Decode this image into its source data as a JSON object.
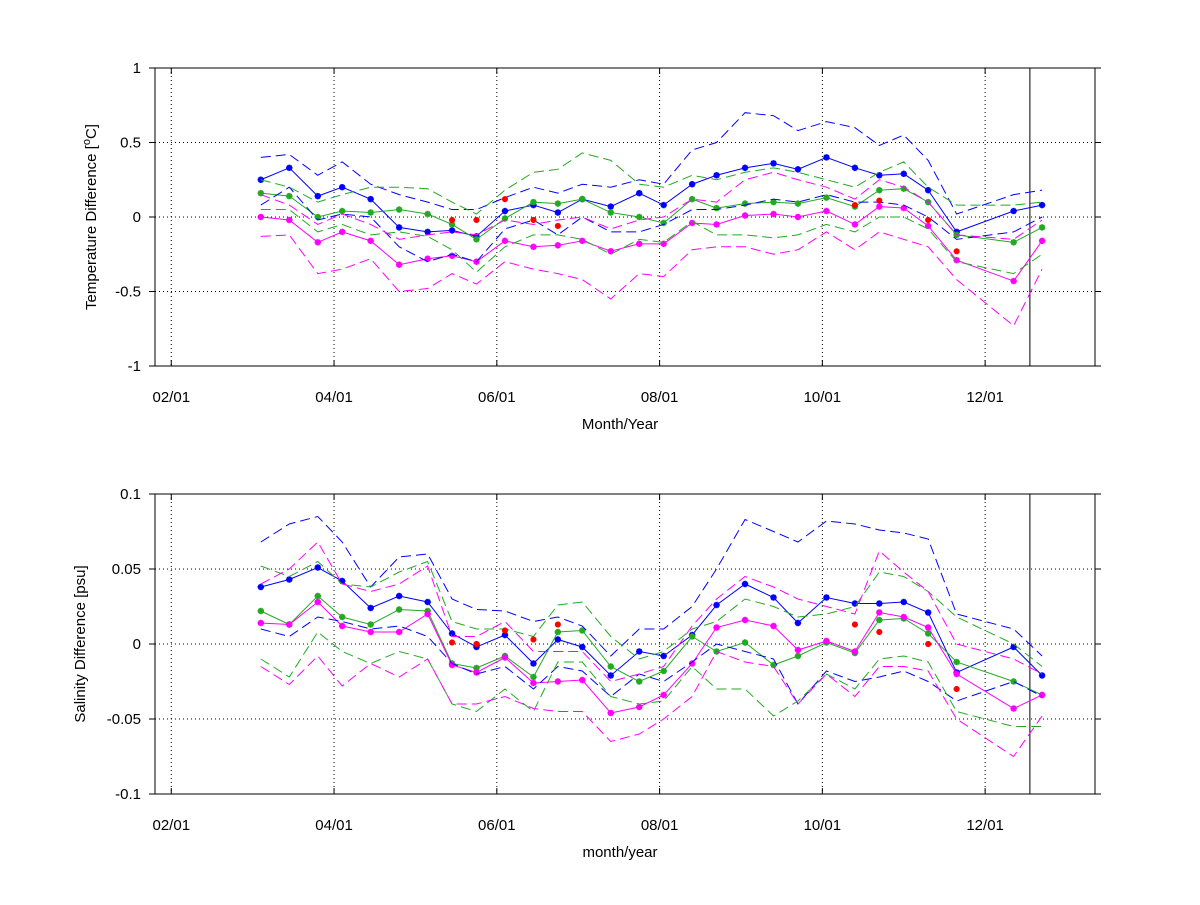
{
  "colors": {
    "blue": "#0000ff",
    "green": "#22aa22",
    "magenta": "#ff00ff",
    "red": "#ff0000"
  },
  "chart_data": [
    {
      "type": "line",
      "xlabel": "Month/Year",
      "ylabel_main": "Temperature Difference [",
      "ylabel_sup": "o",
      "ylabel_tail": "C]",
      "x_ticks": [
        "02/01",
        "04/01",
        "06/01",
        "08/01",
        "10/01",
        "12/01"
      ],
      "y_ticks": [
        "1",
        "0.5",
        "0",
        "-0.5",
        "-1"
      ],
      "ylim": [
        -1,
        1
      ],
      "x_range_months": [
        1.8,
        13.35
      ],
      "x_grid_months": [
        2,
        4,
        6,
        8,
        10,
        12
      ],
      "vline_month": 12.55,
      "grid": true,
      "x": [
        3.1,
        3.45,
        3.8,
        4.1,
        4.45,
        4.8,
        5.15,
        5.45,
        5.75,
        6.1,
        6.45,
        6.75,
        7.05,
        7.4,
        7.75,
        8.05,
        8.4,
        8.7,
        9.05,
        9.4,
        9.7,
        10.05,
        10.4,
        10.7,
        11.0,
        11.3,
        11.65,
        12.35,
        12.7
      ],
      "series": [
        {
          "color": "blue",
          "style": "solid",
          "marker": true,
          "values": [
            0.25,
            0.33,
            0.14,
            0.2,
            0.12,
            -0.07,
            -0.1,
            -0.09,
            -0.13,
            0.04,
            0.08,
            0.03,
            0.12,
            0.07,
            0.16,
            0.08,
            0.22,
            0.28,
            0.33,
            0.36,
            0.32,
            0.4,
            0.33,
            0.28,
            0.29,
            0.18,
            -0.1,
            0.04,
            0.08
          ]
        },
        {
          "color": "green",
          "style": "solid",
          "marker": true,
          "values": [
            0.16,
            0.14,
            0.0,
            0.04,
            0.03,
            0.05,
            0.02,
            -0.05,
            -0.15,
            -0.01,
            0.1,
            0.09,
            0.12,
            0.03,
            0.0,
            -0.04,
            0.12,
            0.06,
            0.09,
            0.1,
            0.09,
            0.13,
            0.07,
            0.18,
            0.19,
            0.1,
            -0.12,
            -0.17,
            -0.07
          ]
        },
        {
          "color": "magenta",
          "style": "solid",
          "marker": true,
          "values": [
            0.0,
            -0.02,
            -0.17,
            -0.1,
            -0.16,
            -0.32,
            -0.28,
            -0.26,
            -0.3,
            -0.16,
            -0.2,
            -0.19,
            -0.16,
            -0.23,
            -0.18,
            -0.18,
            -0.04,
            -0.05,
            0.01,
            0.02,
            0.0,
            0.04,
            -0.05,
            0.07,
            0.06,
            -0.06,
            -0.29,
            -0.43,
            -0.16
          ]
        },
        {
          "color": "blue",
          "style": "dashed",
          "marker": false,
          "values": [
            0.4,
            0.42,
            0.28,
            0.37,
            0.22,
            0.15,
            0.1,
            0.05,
            0.05,
            0.13,
            0.2,
            0.16,
            0.22,
            0.2,
            0.25,
            0.22,
            0.45,
            0.5,
            0.7,
            0.68,
            0.58,
            0.64,
            0.6,
            0.48,
            0.55,
            0.38,
            0.02,
            0.15,
            0.18
          ]
        },
        {
          "color": "blue",
          "style": "dashed",
          "marker": false,
          "values": [
            0.08,
            0.2,
            -0.02,
            0.02,
            0.0,
            -0.2,
            -0.3,
            -0.25,
            -0.3,
            -0.08,
            -0.02,
            -0.12,
            0.0,
            -0.1,
            -0.1,
            -0.05,
            0.05,
            0.05,
            0.08,
            0.12,
            0.1,
            0.15,
            0.1,
            0.1,
            0.08,
            0.0,
            -0.15,
            -0.1,
            0.0
          ]
        },
        {
          "color": "green",
          "style": "dashed",
          "marker": false,
          "values": [
            0.25,
            0.2,
            0.1,
            0.15,
            0.2,
            0.2,
            0.19,
            0.1,
            0.02,
            0.18,
            0.3,
            0.32,
            0.43,
            0.38,
            0.22,
            0.2,
            0.28,
            0.25,
            0.3,
            0.33,
            0.3,
            0.25,
            0.2,
            0.3,
            0.37,
            0.2,
            0.08,
            0.08,
            0.1
          ]
        },
        {
          "color": "green",
          "style": "dashed",
          "marker": false,
          "values": [
            0.05,
            0.05,
            -0.1,
            -0.05,
            -0.12,
            -0.1,
            -0.13,
            -0.22,
            -0.37,
            -0.2,
            -0.12,
            -0.12,
            -0.15,
            -0.25,
            -0.15,
            -0.17,
            -0.03,
            -0.12,
            -0.12,
            -0.14,
            -0.12,
            -0.05,
            -0.1,
            0.0,
            0.0,
            -0.08,
            -0.3,
            -0.38,
            -0.25
          ]
        },
        {
          "color": "magenta",
          "style": "dashed",
          "marker": false,
          "values": [
            0.15,
            0.08,
            -0.05,
            0.02,
            -0.05,
            -0.15,
            -0.12,
            -0.1,
            -0.12,
            -0.02,
            -0.05,
            -0.02,
            0.0,
            -0.08,
            -0.02,
            0.0,
            0.12,
            0.1,
            0.25,
            0.3,
            0.25,
            0.2,
            0.12,
            0.25,
            0.2,
            0.1,
            -0.12,
            -0.15,
            -0.02
          ]
        },
        {
          "color": "magenta",
          "style": "dashed",
          "marker": false,
          "values": [
            -0.13,
            -0.12,
            -0.38,
            -0.35,
            -0.28,
            -0.5,
            -0.48,
            -0.38,
            -0.45,
            -0.3,
            -0.35,
            -0.38,
            -0.42,
            -0.55,
            -0.38,
            -0.4,
            -0.22,
            -0.2,
            -0.2,
            -0.25,
            -0.22,
            -0.1,
            -0.22,
            -0.1,
            -0.15,
            -0.2,
            -0.42,
            -0.73,
            -0.35
          ]
        }
      ],
      "red_points": {
        "x": [
          5.45,
          5.75,
          6.1,
          6.45,
          6.75,
          10.4,
          10.7,
          11.3,
          11.65
        ],
        "values": [
          -0.02,
          -0.02,
          0.12,
          -0.02,
          -0.06,
          0.08,
          0.11,
          -0.02,
          -0.23
        ]
      }
    },
    {
      "type": "line",
      "xlabel": "month/year",
      "ylabel_main": "Salinity Difference [psu]",
      "x_ticks": [
        "02/01",
        "04/01",
        "06/01",
        "08/01",
        "10/01",
        "12/01"
      ],
      "y_ticks": [
        "0.1",
        "0.05",
        "0",
        "-0.05",
        "-0.1"
      ],
      "ylim": [
        -0.1,
        0.1
      ],
      "x_range_months": [
        1.8,
        13.35
      ],
      "x_grid_months": [
        2,
        4,
        6,
        8,
        10,
        12
      ],
      "vline_month": 12.55,
      "grid": true,
      "x": [
        3.1,
        3.45,
        3.8,
        4.1,
        4.45,
        4.8,
        5.15,
        5.45,
        5.75,
        6.1,
        6.45,
        6.75,
        7.05,
        7.4,
        7.75,
        8.05,
        8.4,
        8.7,
        9.05,
        9.4,
        9.7,
        10.05,
        10.4,
        10.7,
        11.0,
        11.3,
        11.65,
        12.35,
        12.7
      ],
      "series": [
        {
          "color": "blue",
          "style": "solid",
          "marker": true,
          "values": [
            0.038,
            0.043,
            0.051,
            0.042,
            0.024,
            0.032,
            0.028,
            0.007,
            -0.002,
            0.006,
            -0.013,
            0.003,
            -0.002,
            -0.021,
            -0.005,
            -0.008,
            0.006,
            0.026,
            0.04,
            0.031,
            0.014,
            0.031,
            0.027,
            0.027,
            0.028,
            0.021,
            -0.019,
            -0.002,
            -0.021
          ]
        },
        {
          "color": "green",
          "style": "solid",
          "marker": true,
          "values": [
            0.022,
            0.013,
            0.032,
            0.018,
            0.013,
            0.023,
            0.022,
            -0.013,
            -0.016,
            -0.008,
            -0.022,
            0.008,
            0.009,
            -0.015,
            -0.025,
            -0.018,
            0.005,
            -0.005,
            0.001,
            -0.014,
            -0.008,
            0.001,
            -0.006,
            0.016,
            0.017,
            0.007,
            -0.012,
            -0.025,
            -0.034
          ]
        },
        {
          "color": "magenta",
          "style": "solid",
          "marker": true,
          "values": [
            0.014,
            0.013,
            0.028,
            0.012,
            0.008,
            0.008,
            0.02,
            -0.014,
            -0.019,
            -0.009,
            -0.026,
            -0.025,
            -0.024,
            -0.046,
            -0.042,
            -0.034,
            -0.013,
            0.011,
            0.016,
            0.012,
            -0.004,
            0.002,
            -0.005,
            0.021,
            0.018,
            0.011,
            -0.02,
            -0.043,
            -0.034
          ]
        },
        {
          "color": "blue",
          "style": "dashed",
          "marker": false,
          "values": [
            0.068,
            0.08,
            0.085,
            0.068,
            0.038,
            0.058,
            0.06,
            0.03,
            0.023,
            0.022,
            0.015,
            0.018,
            0.012,
            -0.008,
            0.01,
            0.01,
            0.025,
            0.05,
            0.083,
            0.075,
            0.068,
            0.082,
            0.08,
            0.076,
            0.074,
            0.07,
            0.02,
            0.01,
            -0.008
          ]
        },
        {
          "color": "blue",
          "style": "dashed",
          "marker": false,
          "values": [
            0.01,
            0.005,
            0.018,
            0.015,
            0.01,
            0.012,
            0.005,
            -0.013,
            -0.02,
            -0.015,
            -0.03,
            -0.015,
            -0.018,
            -0.035,
            -0.02,
            -0.025,
            -0.012,
            0.0,
            -0.005,
            -0.01,
            -0.04,
            -0.018,
            -0.025,
            -0.022,
            -0.018,
            -0.025,
            -0.038,
            -0.025,
            -0.035
          ]
        },
        {
          "color": "green",
          "style": "dashed",
          "marker": false,
          "values": [
            0.052,
            0.045,
            0.055,
            0.04,
            0.038,
            0.048,
            0.055,
            0.015,
            0.01,
            0.01,
            0.005,
            0.026,
            0.028,
            0.005,
            -0.01,
            -0.005,
            0.01,
            0.015,
            0.03,
            0.025,
            0.018,
            0.02,
            0.025,
            0.048,
            0.045,
            0.035,
            0.018,
            0.0,
            -0.015
          ]
        },
        {
          "color": "green",
          "style": "dashed",
          "marker": false,
          "values": [
            -0.01,
            -0.022,
            0.008,
            -0.005,
            -0.013,
            -0.005,
            -0.01,
            -0.04,
            -0.045,
            -0.03,
            -0.045,
            -0.012,
            -0.012,
            -0.035,
            -0.04,
            -0.038,
            -0.015,
            -0.03,
            -0.03,
            -0.048,
            -0.038,
            -0.02,
            -0.03,
            -0.01,
            -0.008,
            -0.012,
            -0.045,
            -0.055,
            -0.055
          ]
        },
        {
          "color": "magenta",
          "style": "dashed",
          "marker": false,
          "values": [
            0.04,
            0.05,
            0.068,
            0.04,
            0.035,
            0.04,
            0.052,
            0.005,
            0.005,
            0.015,
            -0.005,
            -0.005,
            -0.005,
            -0.025,
            -0.02,
            -0.015,
            0.012,
            0.03,
            0.045,
            0.038,
            0.03,
            0.025,
            0.02,
            0.062,
            0.048,
            0.035,
            0.0,
            -0.01,
            -0.02
          ]
        },
        {
          "color": "magenta",
          "style": "dashed",
          "marker": false,
          "values": [
            -0.015,
            -0.027,
            -0.008,
            -0.028,
            -0.013,
            -0.022,
            -0.01,
            -0.04,
            -0.04,
            -0.035,
            -0.043,
            -0.045,
            -0.045,
            -0.065,
            -0.06,
            -0.05,
            -0.035,
            -0.005,
            -0.012,
            -0.015,
            -0.04,
            -0.02,
            -0.035,
            -0.015,
            -0.015,
            -0.018,
            -0.05,
            -0.075,
            -0.048
          ]
        }
      ],
      "red_points": {
        "x": [
          5.45,
          5.75,
          6.1,
          6.45,
          6.75,
          10.4,
          10.7,
          11.3,
          11.65
        ],
        "values": [
          0.001,
          0.0,
          0.009,
          0.003,
          0.013,
          0.013,
          0.008,
          0.0,
          -0.03
        ]
      }
    }
  ]
}
